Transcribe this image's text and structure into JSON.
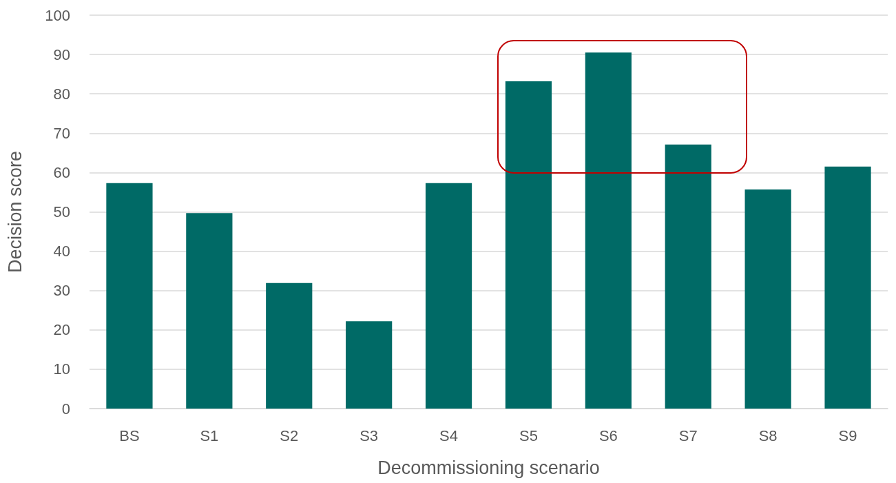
{
  "chart_data": {
    "type": "bar",
    "xlabel": "Decommissioning scenario",
    "ylabel": "Decision score",
    "categories": [
      "BS",
      "S1",
      "S2",
      "S3",
      "S4",
      "S5",
      "S6",
      "S7",
      "S8",
      "S9"
    ],
    "values": [
      57.3,
      49.7,
      31.9,
      22.2,
      57.3,
      83.2,
      90.5,
      67.1,
      55.7,
      61.5
    ],
    "color": "#006a66",
    "ylim": [
      0,
      100
    ],
    "yticks": [
      0,
      10,
      20,
      30,
      40,
      50,
      60,
      70,
      80,
      90,
      100
    ],
    "grid": "y"
  }
}
